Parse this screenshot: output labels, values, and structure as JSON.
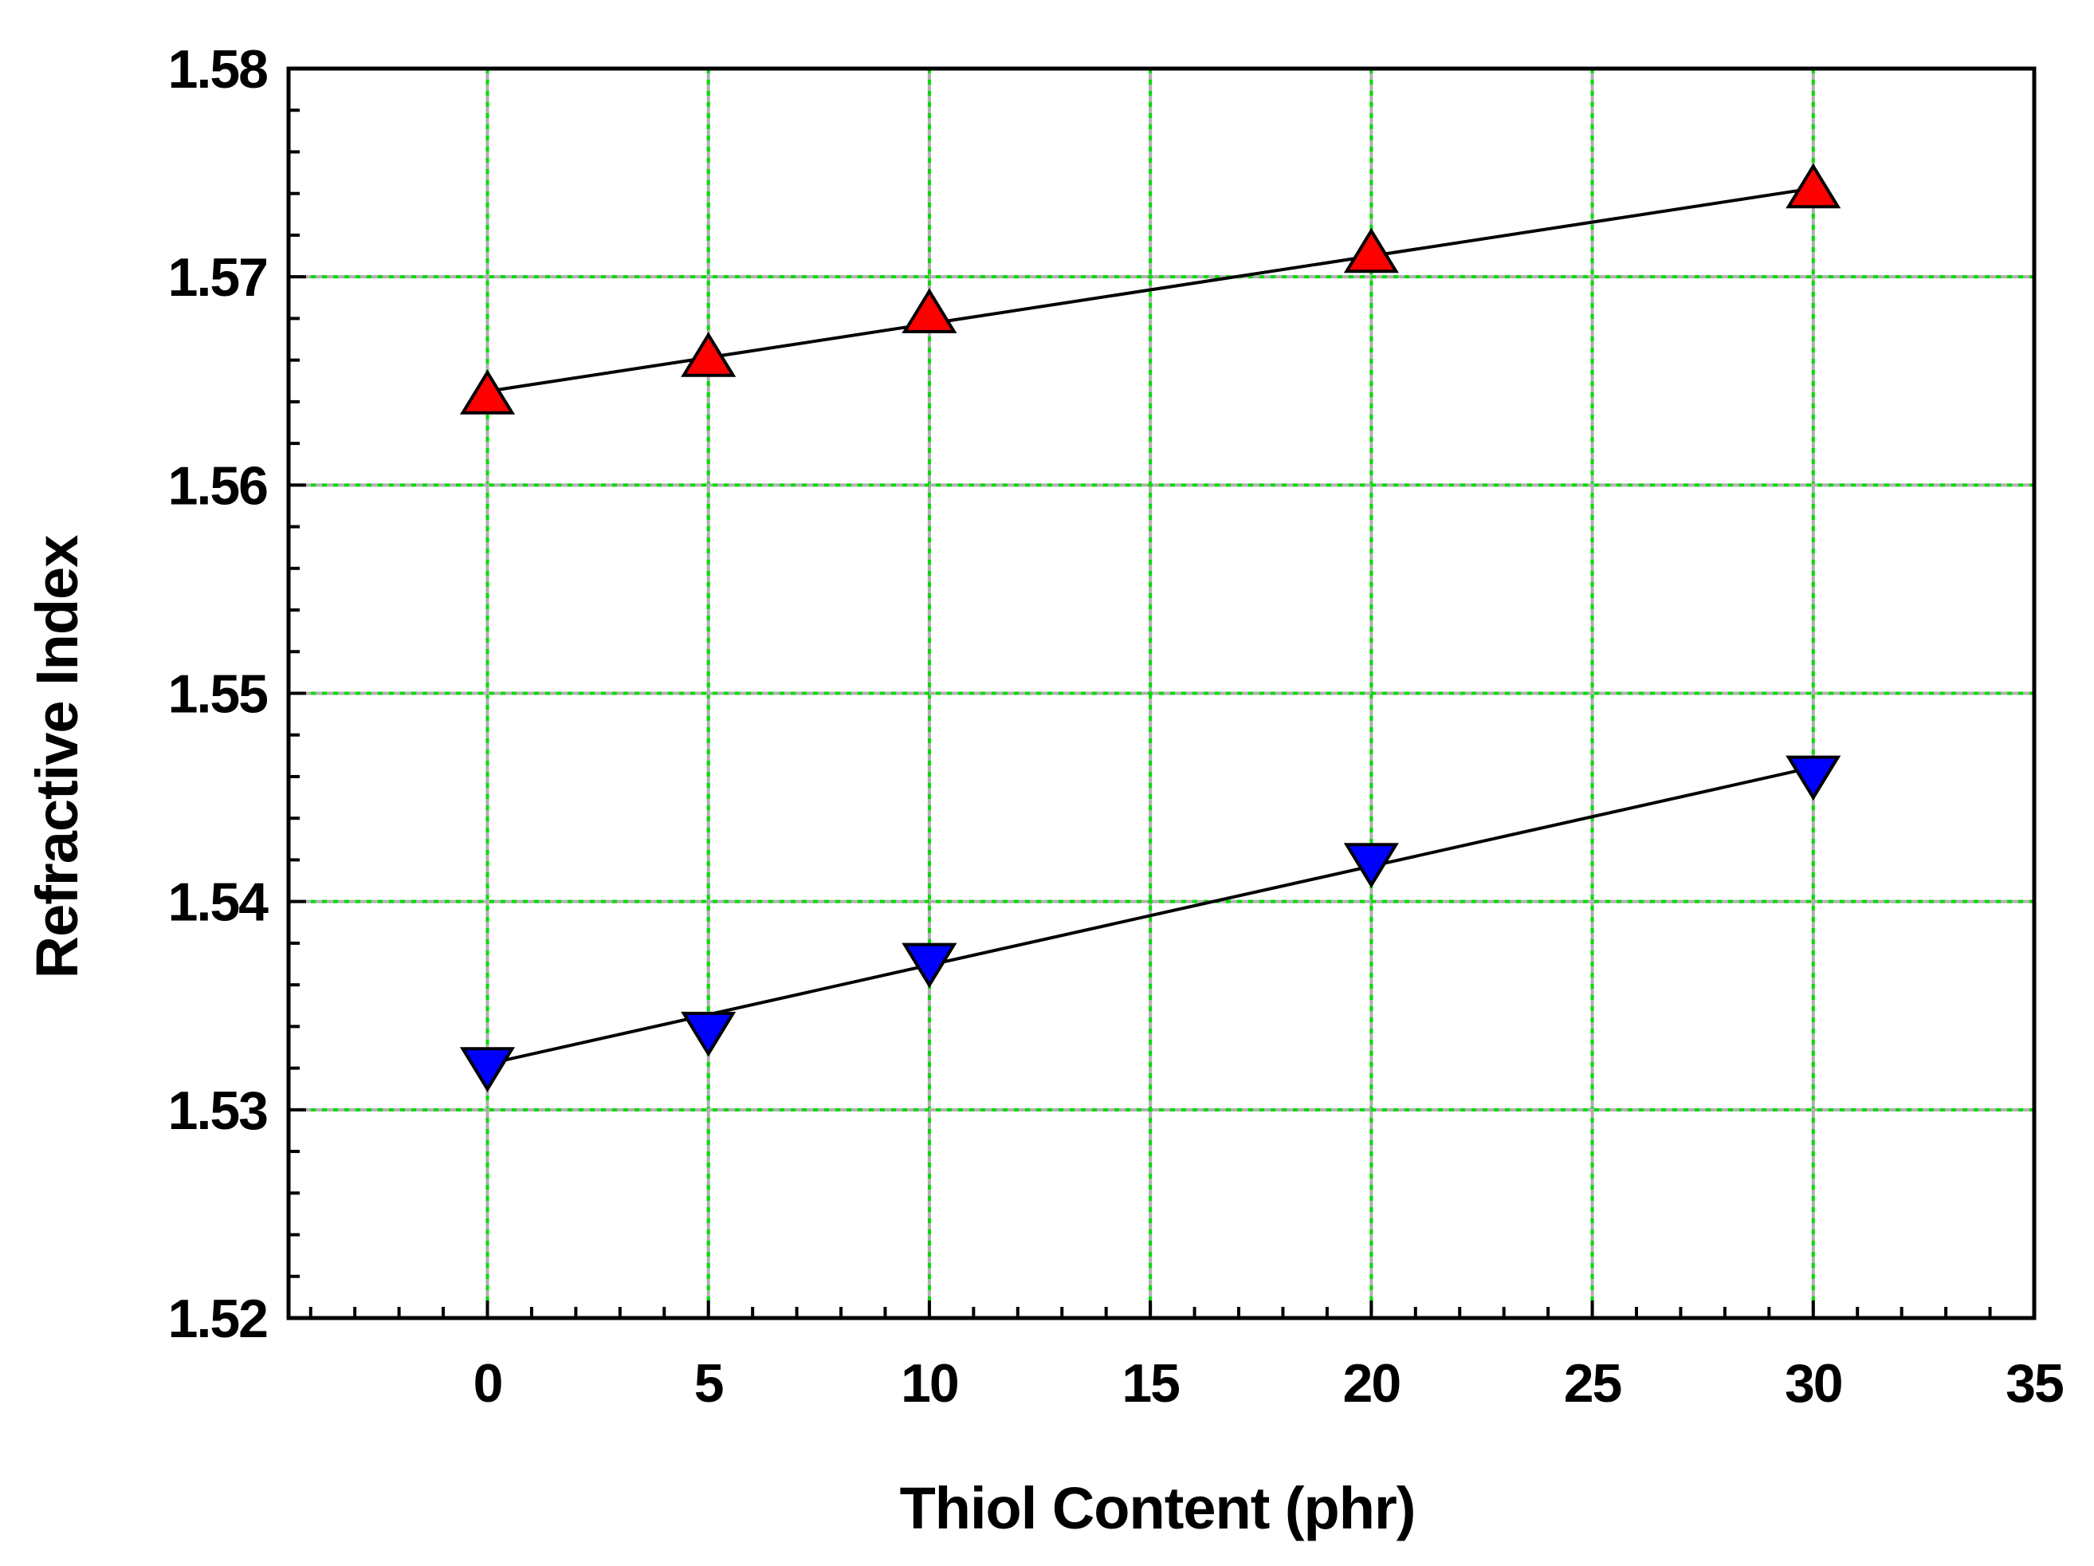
{
  "chart_data": {
    "type": "scatter",
    "title": "",
    "xlabel": "Thiol Content (phr)",
    "ylabel": "Refractive Index",
    "xlim": [
      -4.5,
      35
    ],
    "ylim": [
      1.52,
      1.58
    ],
    "x_ticks": [
      0,
      5,
      10,
      15,
      20,
      25,
      30,
      35
    ],
    "x_tick_labels": [
      "0",
      "5",
      "10",
      "15",
      "20",
      "25",
      "30",
      "35"
    ],
    "y_ticks": [
      1.52,
      1.53,
      1.54,
      1.55,
      1.56,
      1.57,
      1.58
    ],
    "y_tick_labels": [
      "1.52",
      "1.53",
      "1.54",
      "1.55",
      "1.56",
      "1.57",
      "1.58"
    ],
    "grid": true,
    "grid_color": "#00dd00",
    "frame_color": "#000000",
    "fit_line_color": "#000000",
    "series": [
      {
        "marker": "triangle-up",
        "color": "#ff0000",
        "x": [
          0,
          5,
          10,
          20,
          30
        ],
        "y": [
          1.5643,
          1.5661,
          1.5682,
          1.5711,
          1.5742
        ],
        "fit": {
          "slope": 0.000325,
          "intercept": 1.5645
        }
      },
      {
        "marker": "triangle-down",
        "color": "#0000ff",
        "x": [
          0,
          5,
          10,
          20,
          30
        ],
        "y": [
          1.5321,
          1.5338,
          1.5371,
          1.5419,
          1.5461
        ],
        "fit": {
          "slope": 0.000475,
          "intercept": 1.5322
        }
      }
    ]
  }
}
